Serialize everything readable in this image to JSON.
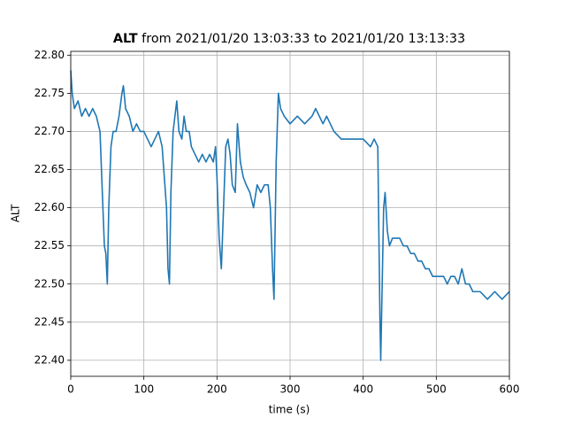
{
  "chart_data": {
    "type": "line",
    "title": {
      "variable": "ALT",
      "text": "from 2021/01/20 13:03:33 to 2021/01/20 13:13:33"
    },
    "xlabel": "time (s)",
    "ylabel": "ALT",
    "xlim": [
      0,
      600
    ],
    "xticks": [
      0,
      100,
      200,
      300,
      400,
      500,
      600
    ],
    "ylim": [
      22.379,
      22.805
    ],
    "yticks": [
      {
        "value": 22.4,
        "label": "22.40"
      },
      {
        "value": 22.45,
        "label": "22.45"
      },
      {
        "value": 22.5,
        "label": "22.50"
      },
      {
        "value": 22.55,
        "label": "22.55"
      },
      {
        "value": 22.6,
        "label": "22.60"
      },
      {
        "value": 22.65,
        "label": "22.65"
      },
      {
        "value": 22.7,
        "label": "22.70"
      },
      {
        "value": 22.75,
        "label": "22.75"
      },
      {
        "value": 22.8,
        "label": "22.80"
      }
    ],
    "grid": true,
    "color": "#1f77b4",
    "x": [
      0,
      2,
      5,
      10,
      15,
      20,
      25,
      30,
      35,
      40,
      44,
      46,
      48,
      50,
      52,
      55,
      58,
      62,
      66,
      70,
      72,
      75,
      80,
      85,
      90,
      95,
      100,
      105,
      110,
      115,
      120,
      125,
      128,
      131,
      133,
      135,
      137,
      140,
      145,
      148,
      152,
      155,
      158,
      162,
      165,
      170,
      175,
      180,
      185,
      190,
      195,
      198,
      200,
      203,
      206,
      209,
      212,
      215,
      218,
      221,
      225,
      228,
      232,
      236,
      240,
      245,
      250,
      255,
      260,
      265,
      270,
      273,
      276,
      278,
      281,
      284,
      287,
      292,
      300,
      310,
      320,
      330,
      335,
      340,
      345,
      350,
      355,
      360,
      370,
      380,
      390,
      400,
      410,
      415,
      420,
      421,
      423,
      424,
      426,
      428,
      430,
      433,
      436,
      440,
      445,
      450,
      455,
      460,
      465,
      470,
      475,
      480,
      485,
      490,
      495,
      500,
      505,
      510,
      515,
      520,
      525,
      530,
      535,
      540,
      545,
      550,
      560,
      570,
      580,
      590,
      600
    ],
    "values": [
      22.78,
      22.75,
      22.73,
      22.74,
      22.72,
      22.73,
      22.72,
      22.73,
      22.72,
      22.7,
      22.6,
      22.55,
      22.54,
      22.5,
      22.6,
      22.68,
      22.7,
      22.7,
      22.72,
      22.75,
      22.76,
      22.73,
      22.72,
      22.7,
      22.71,
      22.7,
      22.7,
      22.69,
      22.68,
      22.69,
      22.7,
      22.68,
      22.64,
      22.6,
      22.52,
      22.5,
      22.62,
      22.7,
      22.74,
      22.7,
      22.69,
      22.72,
      22.7,
      22.7,
      22.68,
      22.67,
      22.66,
      22.67,
      22.66,
      22.67,
      22.66,
      22.68,
      22.64,
      22.56,
      22.52,
      22.6,
      22.68,
      22.69,
      22.67,
      22.63,
      22.62,
      22.71,
      22.66,
      22.64,
      22.63,
      22.62,
      22.6,
      22.63,
      22.62,
      22.63,
      22.63,
      22.6,
      22.52,
      22.48,
      22.66,
      22.75,
      22.73,
      22.72,
      22.71,
      22.72,
      22.71,
      22.72,
      22.73,
      22.72,
      22.71,
      22.72,
      22.71,
      22.7,
      22.69,
      22.69,
      22.69,
      22.69,
      22.68,
      22.69,
      22.68,
      22.6,
      22.45,
      22.4,
      22.5,
      22.6,
      22.62,
      22.57,
      22.55,
      22.56,
      22.56,
      22.56,
      22.55,
      22.55,
      22.54,
      22.54,
      22.53,
      22.53,
      22.52,
      22.52,
      22.51,
      22.51,
      22.51,
      22.51,
      22.5,
      22.51,
      22.51,
      22.5,
      22.52,
      22.5,
      22.5,
      22.49,
      22.49,
      22.48,
      22.49,
      22.48,
      22.49
    ]
  }
}
